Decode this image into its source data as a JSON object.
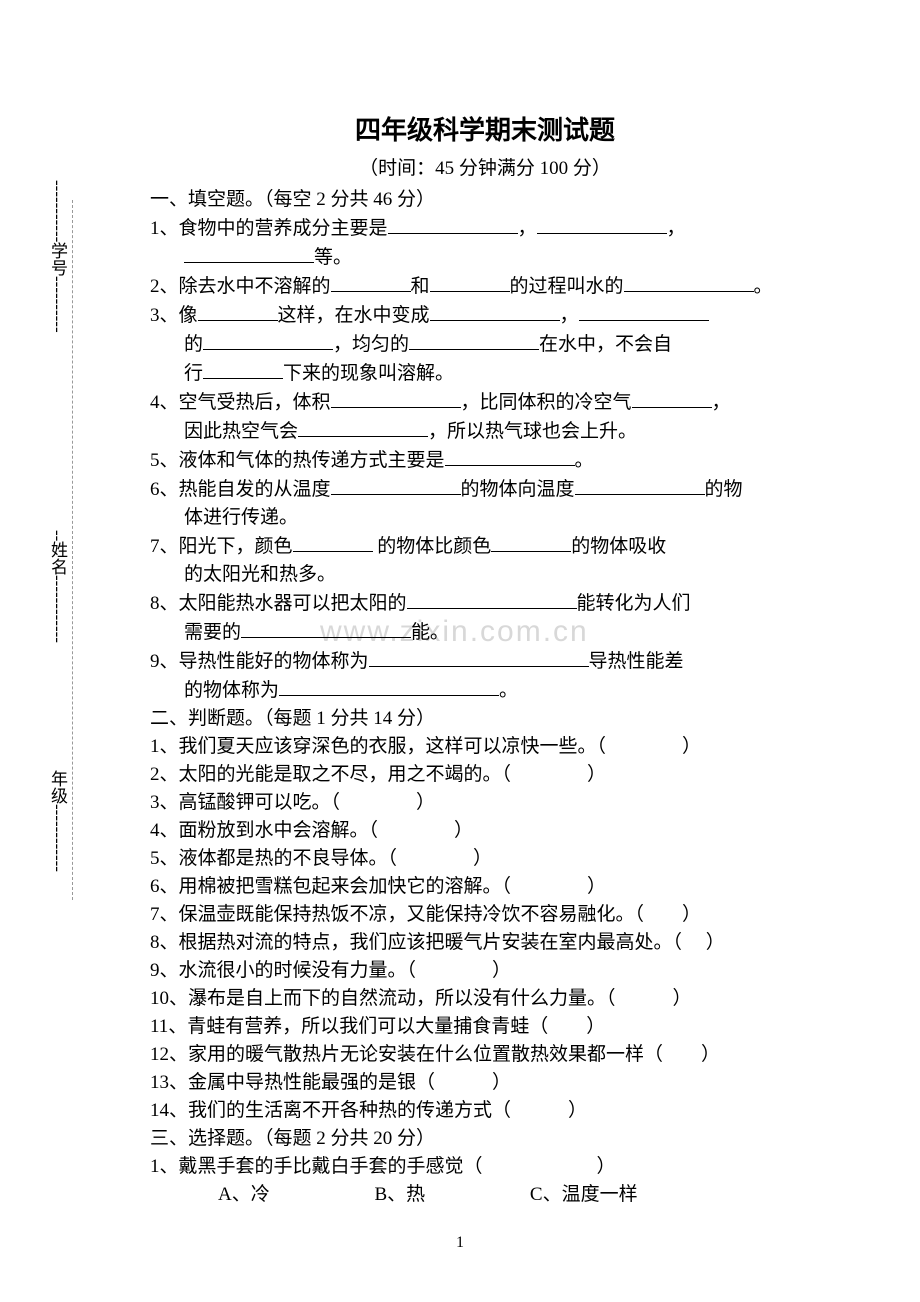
{
  "title": "四年级科学期末测试题",
  "subtitle": "（时间：45 分钟满分 100 分）",
  "watermark": "www.zixin.com.cn",
  "pageNumber": "1",
  "vertLabels": {
    "top": "学号",
    "mid": "姓名",
    "bottom": "年级"
  },
  "sections": [
    {
      "header": "一、填空题。（每空 2 分共 46 分）"
    },
    {
      "header": "二、判断题。（每题 1 分共 14 分）"
    },
    {
      "header": "三、选择题。（每题 2 分共 20 分）"
    }
  ],
  "fill": {
    "q1a": "1、食物中的营养成分主要是",
    "q1b": "等。",
    "q2a": "2、除去水中不溶解的",
    "q2b": "和",
    "q2c": "的过程叫水的",
    "q3a": "3、像",
    "q3b": "这样，在水中变成",
    "q3c": "的",
    "q3d": "，均匀的",
    "q3e": "在水中，不会自",
    "q3f": "行",
    "q3g": "下来的现象叫溶解。",
    "q4a": "4、空气受热后，体积",
    "q4b": "，比同体积的冷空气",
    "q4c": "因此热空气会",
    "q4d": "，所以热气球也会上升。",
    "q5": "5、液体和气体的热传递方式主要是",
    "q6a": "6、热能自发的从温度",
    "q6b": "的物体向温度",
    "q6c": "的物",
    "q6d": "体进行传递。",
    "q7a": "7、阳光下，颜色",
    "q7b": " 的物体比颜色",
    "q7c": "的物体吸收",
    "q7d": "的太阳光和热多。",
    "q8a": "8、太阳能热水器可以把太阳的",
    "q8b": "能转化为人们",
    "q8c": "需要的",
    "q8d": "能。",
    "q9a": "9、导热性能好的物体称为",
    "q9b": "导热性能差",
    "q9c": "的物体称为"
  },
  "judge": {
    "q1": "1、我们夏天应该穿深色的衣服，这样可以凉快一些。（　　　　）",
    "q2": "2、太阳的光能是取之不尽，用之不竭的。（　　　　）",
    "q3": "3、高锰酸钾可以吃。（　　　　）",
    "q4": "4、面粉放到水中会溶解。（　　　　）",
    "q5": "5、液体都是热的不良导体。（　　　　）",
    "q6": "6、用棉被把雪糕包起来会加快它的溶解。（　　　　）",
    "q7": "7、保温壶既能保持热饭不凉，又能保持冷饮不容易融化。（　　）",
    "q8": "8、根据热对流的特点，我们应该把暖气片安装在室内最高处。（　 ）",
    "q9": "9、水流很小的时候没有力量。（　　　　）",
    "q10": "10、瀑布是自上而下的自然流动，所以没有什么力量。（　　　）",
    "q11": "11、青蛙有营养，所以我们可以大量捕食青蛙（　　）",
    "q12": "12、家用的暖气散热片无论安装在什么位置散热效果都一样（　　）",
    "q13": "13、金属中导热性能最强的是银（　　　）",
    "q14": "14、我们的生活离不开各种热的传递方式（　　　）"
  },
  "choice": {
    "q1": "1、戴黑手套的手比戴白手套的手感觉（　　　　　　）",
    "q1a": "A、冷",
    "q1b": "B、热",
    "q1c": "C、温度一样"
  }
}
